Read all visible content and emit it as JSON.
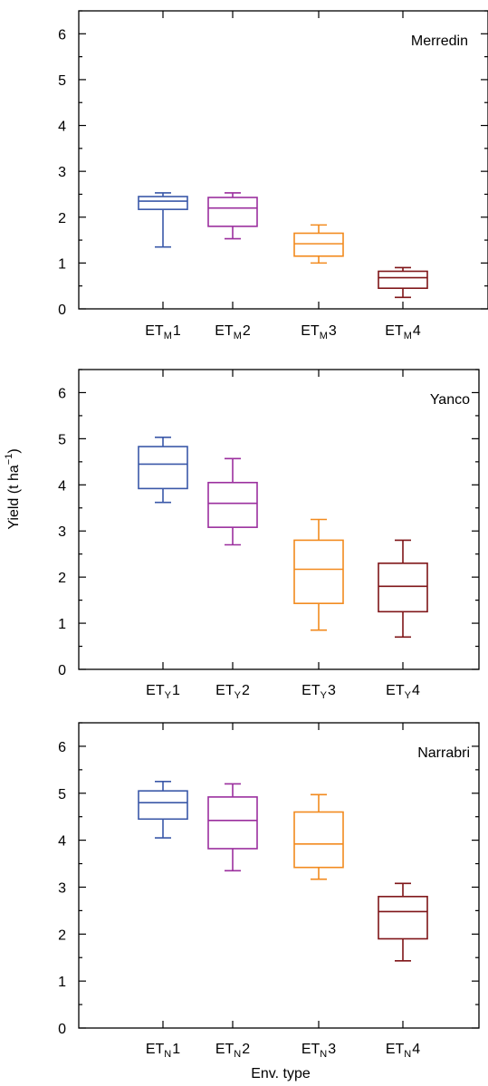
{
  "figure": {
    "ylabel": "Yield (t ha",
    "ylabel_superscript": "−1",
    "ylabel_close": ")",
    "xlabel": "Env. type"
  },
  "chart_data": [
    {
      "type": "box",
      "title": "Merredin",
      "ylim": [
        0,
        6.5
      ],
      "yticks": [
        0,
        1,
        2,
        3,
        4,
        5,
        6
      ],
      "categories": [
        {
          "prefix": "ET",
          "sub": "M",
          "suffix": "1",
          "color": "#3a58a8",
          "min": 1.35,
          "q1": 2.17,
          "median": 2.35,
          "q3": 2.45,
          "max": 2.53
        },
        {
          "prefix": "ET",
          "sub": "M",
          "suffix": "2",
          "color": "#9b2f9e",
          "min": 1.53,
          "q1": 1.8,
          "median": 2.2,
          "q3": 2.43,
          "max": 2.53
        },
        {
          "prefix": "ET",
          "sub": "M",
          "suffix": "3",
          "color": "#f28a1e",
          "min": 1.0,
          "q1": 1.15,
          "median": 1.42,
          "q3": 1.65,
          "max": 1.83
        },
        {
          "prefix": "ET",
          "sub": "M",
          "suffix": "4",
          "color": "#7f1518",
          "min": 0.25,
          "q1": 0.45,
          "median": 0.68,
          "q3": 0.82,
          "max": 0.9
        }
      ]
    },
    {
      "type": "box",
      "title": "Yanco",
      "ylim": [
        0,
        6.5
      ],
      "yticks": [
        0,
        1,
        2,
        3,
        4,
        5,
        6
      ],
      "categories": [
        {
          "prefix": "ET",
          "sub": "Y",
          "suffix": "1",
          "color": "#3a58a8",
          "min": 3.62,
          "q1": 3.92,
          "median": 4.45,
          "q3": 4.83,
          "max": 5.03
        },
        {
          "prefix": "ET",
          "sub": "Y",
          "suffix": "2",
          "color": "#9b2f9e",
          "min": 2.7,
          "q1": 3.08,
          "median": 3.6,
          "q3": 4.05,
          "max": 4.57
        },
        {
          "prefix": "ET",
          "sub": "Y",
          "suffix": "3",
          "color": "#f28a1e",
          "min": 0.85,
          "q1": 1.43,
          "median": 2.17,
          "q3": 2.8,
          "max": 3.25
        },
        {
          "prefix": "ET",
          "sub": "Y",
          "suffix": "4",
          "color": "#7f1518",
          "min": 0.7,
          "q1": 1.25,
          "median": 1.8,
          "q3": 2.3,
          "max": 2.8
        }
      ]
    },
    {
      "type": "box",
      "title": "Narrabri",
      "ylim": [
        0,
        6.5
      ],
      "yticks": [
        0,
        1,
        2,
        3,
        4,
        5,
        6
      ],
      "categories": [
        {
          "prefix": "ET",
          "sub": "N",
          "suffix": "1",
          "color": "#3a58a8",
          "min": 4.05,
          "q1": 4.45,
          "median": 4.8,
          "q3": 5.05,
          "max": 5.25
        },
        {
          "prefix": "ET",
          "sub": "N",
          "suffix": "2",
          "color": "#9b2f9e",
          "min": 3.35,
          "q1": 3.82,
          "median": 4.42,
          "q3": 4.92,
          "max": 5.2
        },
        {
          "prefix": "ET",
          "sub": "N",
          "suffix": "3",
          "color": "#f28a1e",
          "min": 3.17,
          "q1": 3.42,
          "median": 3.92,
          "q3": 4.6,
          "max": 4.97
        },
        {
          "prefix": "ET",
          "sub": "N",
          "suffix": "4",
          "color": "#7f1518",
          "min": 1.43,
          "q1": 1.9,
          "median": 2.48,
          "q3": 2.8,
          "max": 3.08
        }
      ]
    }
  ]
}
